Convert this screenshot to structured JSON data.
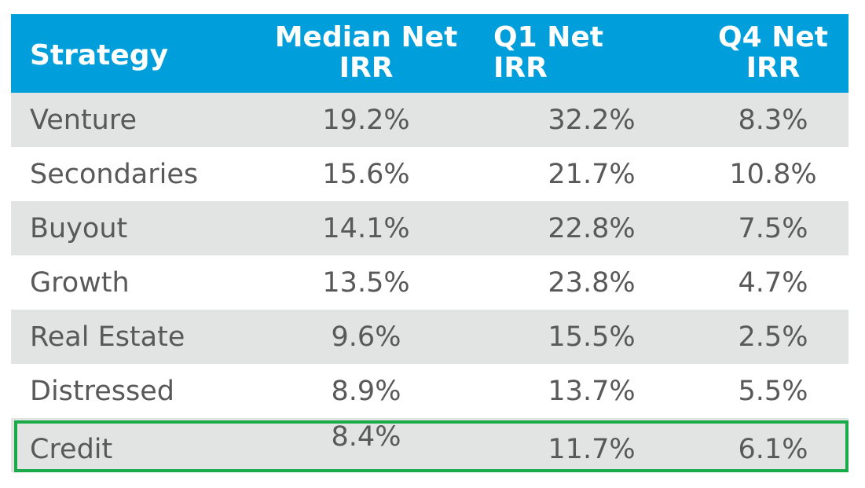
{
  "chart_data": {
    "type": "table",
    "columns": [
      "Strategy",
      "Median Net IRR",
      "Q1 Net IRR",
      "Q4 Net IRR"
    ],
    "header_lines": [
      [
        "Strategy"
      ],
      [
        "Median Net",
        "IRR"
      ],
      [
        "Q1 Net",
        "IRR"
      ],
      [
        "Q4 Net",
        "IRR"
      ]
    ],
    "rows": [
      {
        "strategy": "Venture",
        "median": "19.2%",
        "q1": "32.2%",
        "q4": "8.3%"
      },
      {
        "strategy": "Secondaries",
        "median": "15.6%",
        "q1": "21.7%",
        "q4": "10.8%"
      },
      {
        "strategy": "Buyout",
        "median": "14.1%",
        "q1": "22.8%",
        "q4": "7.5%"
      },
      {
        "strategy": "Growth",
        "median": "13.5%",
        "q1": "23.8%",
        "q4": "4.7%"
      },
      {
        "strategy": "Real Estate",
        "median": "9.6%",
        "q1": "15.5%",
        "q4": "2.5%"
      },
      {
        "strategy": "Distressed",
        "median": "8.9%",
        "q1": "13.7%",
        "q4": "5.5%"
      },
      {
        "strategy": "Credit",
        "median": "8.4%",
        "q1": "11.7%",
        "q4": "6.1%"
      }
    ],
    "highlighted_row": "Credit"
  },
  "colors": {
    "header_background": "#009edb",
    "header_text": "#ffffff",
    "row_stripe": "#e2e3e3",
    "row_plain": "#ffffff",
    "body_text": "#595959",
    "highlight_border": "#1aaa4a"
  }
}
